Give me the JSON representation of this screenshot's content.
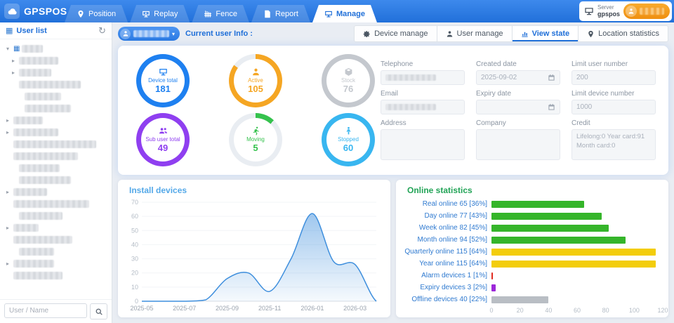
{
  "header": {
    "logo_text": "GPSPOS",
    "nav_tabs": [
      {
        "label": "Position",
        "icon": "position-icon",
        "active": false
      },
      {
        "label": "Replay",
        "icon": "replay-icon",
        "active": false
      },
      {
        "label": "Fence",
        "icon": "fence-icon",
        "active": false
      },
      {
        "label": "Report",
        "icon": "report-icon",
        "active": false
      },
      {
        "label": "Manage",
        "icon": "manage-icon",
        "active": true
      }
    ],
    "server": {
      "label": "Server",
      "name": "gpspos"
    }
  },
  "sidebar": {
    "title": "User list",
    "search": {
      "placeholder": "User / Name"
    }
  },
  "main": {
    "current_user_label": "Current user Info :",
    "manage_tabs": [
      {
        "label": "Device manage",
        "icon": "gear-icon",
        "active": false
      },
      {
        "label": "User manage",
        "icon": "user-icon",
        "active": false
      },
      {
        "label": "View state",
        "icon": "chart-icon",
        "active": true
      },
      {
        "label": "Location statistics",
        "icon": "pin-icon",
        "active": false
      }
    ],
    "gauges": [
      {
        "label": "Device total",
        "value": "181",
        "color": "#1e80f0",
        "pct": 100,
        "icon": "monitor-icon"
      },
      {
        "label": "Active",
        "value": "105",
        "color": "#f5a623",
        "pct": 85,
        "icon": "active-user-icon"
      },
      {
        "label": "Stock",
        "value": "76",
        "color": "#c4c8ce",
        "pct": 100,
        "icon": "stock-icon"
      },
      {
        "label": "Sub user total",
        "value": "49",
        "color": "#8f3ff0",
        "pct": 100,
        "icon": "users-icon"
      },
      {
        "label": "Moving",
        "value": "5",
        "color": "#35c24d",
        "pct": 12,
        "icon": "running-icon"
      },
      {
        "label": "Stopped",
        "value": "60",
        "color": "#38b6f0",
        "pct": 100,
        "icon": "stopped-icon"
      }
    ],
    "form_fields": [
      {
        "label": "Telephone",
        "value": "",
        "redacted": true,
        "type": "text"
      },
      {
        "label": "Created date",
        "value": "2025-09-02",
        "type": "date"
      },
      {
        "label": "Limit user number",
        "value": "200",
        "type": "text"
      },
      {
        "label": "Email",
        "value": "",
        "redacted": true,
        "type": "text"
      },
      {
        "label": "Expiry date",
        "value": "",
        "type": "date"
      },
      {
        "label": "Limit device number",
        "value": "1000",
        "type": "text"
      },
      {
        "label": "Address",
        "value": "",
        "type": "textarea"
      },
      {
        "label": "Company",
        "value": "",
        "type": "textarea"
      },
      {
        "label": "Credit",
        "value": "Lifelong:0  Year card:91\nMonth card:0",
        "type": "textarea"
      }
    ]
  },
  "chart_data": [
    {
      "type": "area",
      "title": "Install devices",
      "title_color": "#53a8e8",
      "line_color": "#3f8fdd",
      "x_ticks": [
        "2025-05",
        "2025-07",
        "2025-09",
        "2025-11",
        "2026-01",
        "2026-03"
      ],
      "y_ticks": [
        0,
        10,
        20,
        30,
        40,
        50,
        60,
        70
      ],
      "ylim": [
        0,
        70
      ],
      "x": [
        "2025-05",
        "2025-06",
        "2025-07",
        "2025-08",
        "2025-09",
        "2025-10",
        "2025-11",
        "2025-12",
        "2026-01",
        "2026-02",
        "2026-03",
        "2026-04"
      ],
      "values": [
        0,
        0,
        0,
        1,
        16,
        20,
        7,
        30,
        62,
        28,
        26,
        0
      ]
    },
    {
      "type": "bar",
      "orientation": "horizontal",
      "title": "Online statistics",
      "title_color": "#21a356",
      "xlim": [
        0,
        120
      ],
      "x_ticks": [
        0,
        20,
        40,
        60,
        80,
        100,
        120
      ],
      "bars": [
        {
          "label": "Real online",
          "value": 65,
          "pct": 36,
          "color": "#35b52a"
        },
        {
          "label": "Day online",
          "value": 77,
          "pct": 43,
          "color": "#35b52a"
        },
        {
          "label": "Week online",
          "value": 82,
          "pct": 45,
          "color": "#35b52a"
        },
        {
          "label": "Month online",
          "value": 94,
          "pct": 52,
          "color": "#35b52a"
        },
        {
          "label": "Quarterly online",
          "value": 115,
          "pct": 64,
          "color": "#f3cd0c"
        },
        {
          "label": "Year online",
          "value": 115,
          "pct": 64,
          "color": "#f3cd0c"
        },
        {
          "label": "Alarm devices",
          "value": 1,
          "pct": 1,
          "color": "#e02b20"
        },
        {
          "label": "Expiry devices",
          "value": 3,
          "pct": 2,
          "color": "#9c27d9"
        },
        {
          "label": "Offline devices",
          "value": 40,
          "pct": 22,
          "color": "#b9bec4"
        }
      ]
    }
  ]
}
